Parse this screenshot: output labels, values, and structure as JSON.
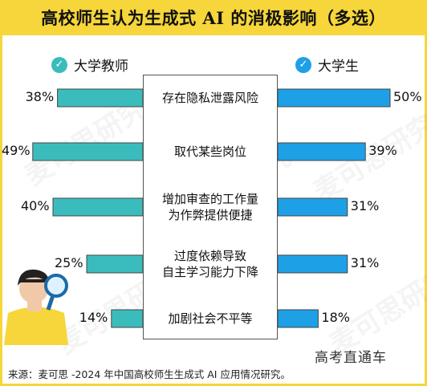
{
  "title": "高校师生认为生成式 AI 的消极影响（多选）",
  "legend": {
    "left": {
      "label": "大学教师",
      "color": "#3bbcbc"
    },
    "right": {
      "label": "大学生",
      "color": "#1ea0e6"
    }
  },
  "chart_data": {
    "type": "bar",
    "orientation": "horizontal-butterfly",
    "categories": [
      "存在隐私泄露风险",
      "取代某些岗位",
      "增加审查的工作量为作弊提供便捷",
      "过度依赖导致自主学习能力下降",
      "加剧社会不平等"
    ],
    "category_lines": [
      [
        "存在隐私泄露风险"
      ],
      [
        "取代某些岗位"
      ],
      [
        "增加审查的工作量",
        "为作弊提供便捷"
      ],
      [
        "过度依赖导致",
        "自主学习能力下降"
      ],
      [
        "加剧社会不平等"
      ]
    ],
    "series": [
      {
        "name": "大学教师",
        "values": [
          38,
          49,
          40,
          25,
          14
        ],
        "labels": [
          "38%",
          "49%",
          "40%",
          "25%",
          "14%"
        ]
      },
      {
        "name": "大学生",
        "values": [
          50,
          39,
          31,
          31,
          18
        ],
        "labels": [
          "50%",
          "39%",
          "31%",
          "31%",
          "18%"
        ]
      }
    ],
    "xlim": [
      0,
      50
    ],
    "colors": {
      "teacher": "#3bbcbc",
      "student": "#1ea0e6"
    }
  },
  "source": "来源：麦可思 -2024 年中国高校师生生成式 AI 应用情况研究。",
  "brand": "高考直通车",
  "watermark_text": "麦可思研究",
  "icons": {
    "legend": "check-icon",
    "mascot": "magnifier-person-illustration"
  }
}
